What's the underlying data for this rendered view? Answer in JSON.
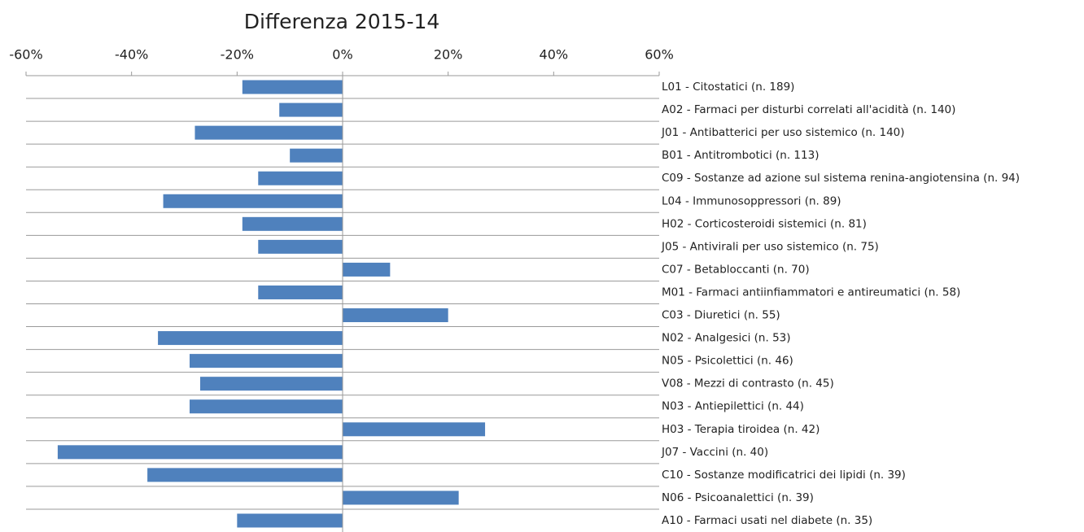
{
  "chart_data": {
    "type": "bar",
    "orientation": "horizontal",
    "title": "Differenza  2015-14",
    "categories": [
      "L01 - Citostatici (n. 189)",
      "A02 - Farmaci per disturbi correlati all'acidità (n. 140)",
      "J01 - Antibatterici per uso sistemico (n. 140)",
      "B01 - Antitrombotici (n. 113)",
      "C09 - Sostanze ad azione sul sistema renina-angiotensina (n. 94)",
      "L04 - Immunosoppressori (n. 89)",
      "H02 - Corticosteroidi sistemici (n. 81)",
      "J05 - Antivirali per uso sistemico (n. 75)",
      "C07 - Betabloccanti (n. 70)",
      "M01 - Farmaci antiinfiammatori e antireumatici (n. 58)",
      "C03 - Diuretici (n. 55)",
      "N02 - Analgesici (n. 53)",
      "N05 - Psicolettici (n. 46)",
      "V08 - Mezzi di contrasto (n. 45)",
      "N03 - Antiepilettici (n. 44)",
      "H03 - Terapia tiroidea (n. 42)",
      "J07 - Vaccini (n. 40)",
      "C10 - Sostanze modificatrici dei lipidi (n. 39)",
      "N06 - Psicoanalettici (n. 39)",
      "A10 - Farmaci usati nel diabete (n. 35)"
    ],
    "values": [
      -19,
      -12,
      -28,
      -10,
      -16,
      -34,
      -19,
      -16,
      9,
      -16,
      20,
      -35,
      -29,
      -27,
      -29,
      27,
      -54,
      -37,
      22,
      -20
    ],
    "color": "#4f81bd",
    "xlim": [
      -60,
      60
    ],
    "xticks": [
      {
        "value": -60,
        "label": "-60%"
      },
      {
        "value": -40,
        "label": "-40%"
      },
      {
        "value": -20,
        "label": "-20%"
      },
      {
        "value": 0,
        "label": "0%"
      },
      {
        "value": 20,
        "label": "20%"
      },
      {
        "value": 40,
        "label": "40%"
      },
      {
        "value": 60,
        "label": "60%"
      }
    ]
  }
}
